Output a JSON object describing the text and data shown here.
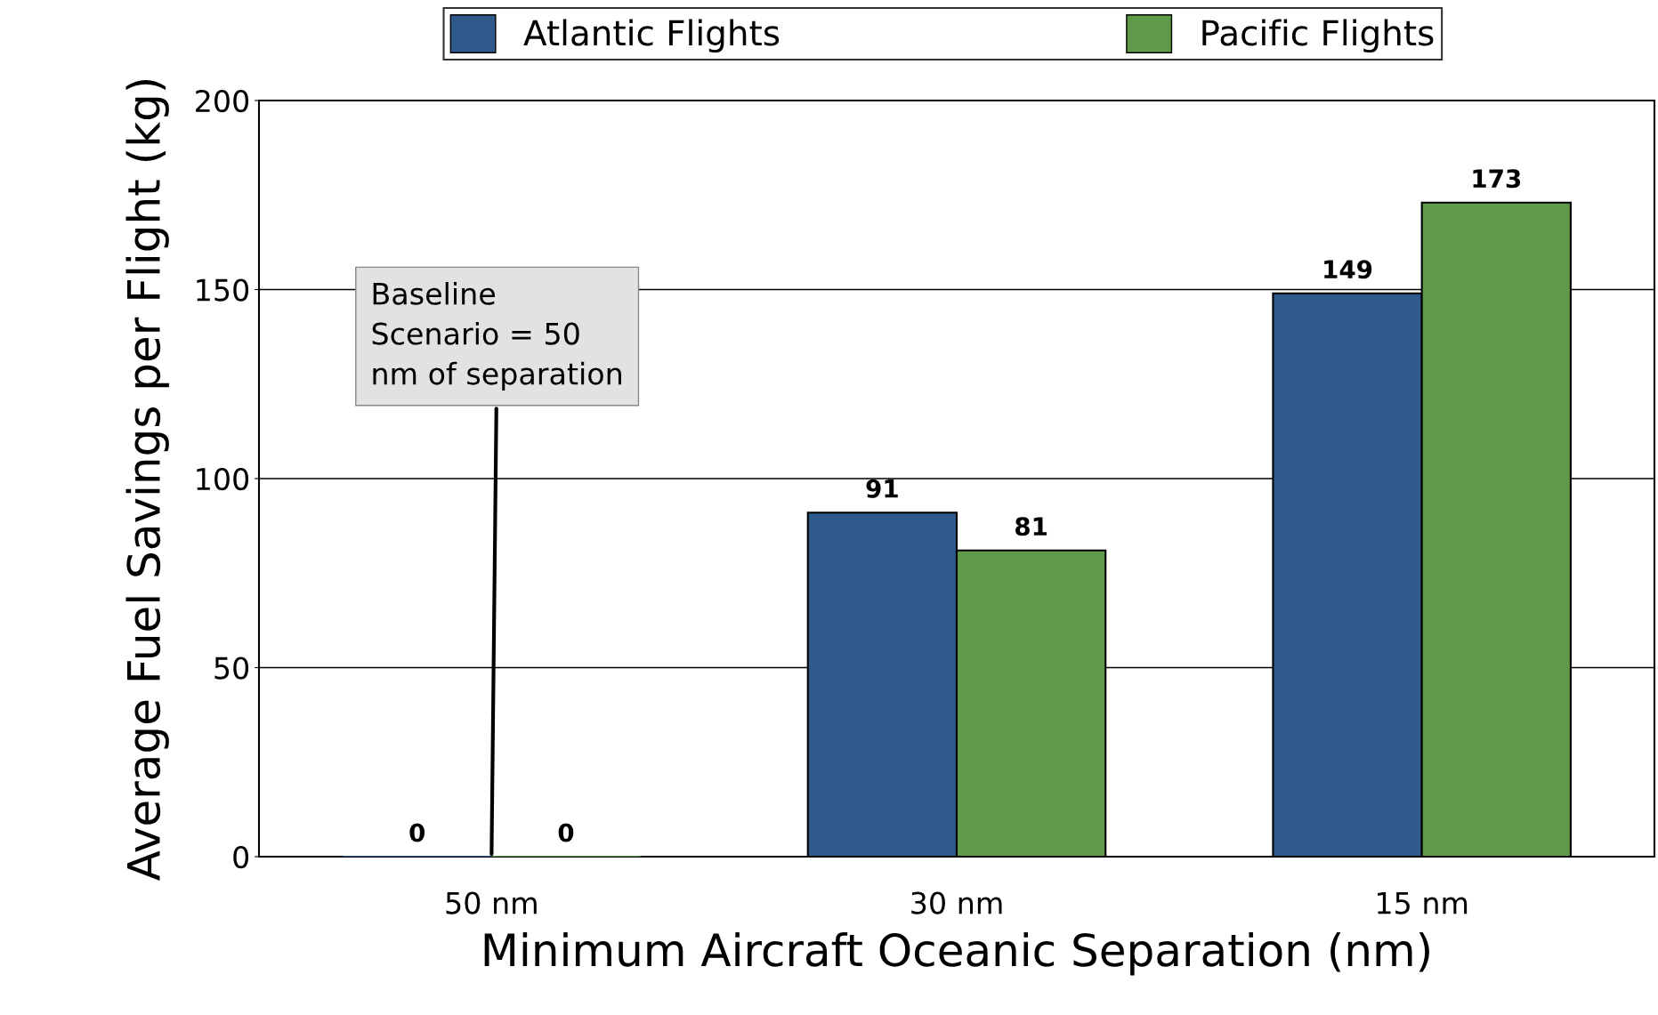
{
  "chart_data": {
    "type": "bar",
    "xlabel": "Minimum Aircraft Oceanic Separation (nm)",
    "ylabel": "Average Fuel Savings per Flight (kg)",
    "categories": [
      "50 nm",
      "30 nm",
      "15 nm"
    ],
    "series": [
      {
        "name": "Atlantic Flights",
        "color": "#2e5a8c",
        "values": [
          0,
          91,
          149
        ]
      },
      {
        "name": "Pacific Flights",
        "color": "#5f9a4a",
        "values": [
          0,
          81,
          173
        ]
      }
    ],
    "ylim": [
      0,
      200
    ],
    "yticks": [
      0,
      50,
      100,
      150,
      200
    ],
    "grid": "y",
    "legend": "top",
    "data_labels": true,
    "annotations": [
      {
        "text": "Baseline\nScenario = 50\nnm of separation",
        "x": "50 nm",
        "y": 0
      }
    ]
  }
}
